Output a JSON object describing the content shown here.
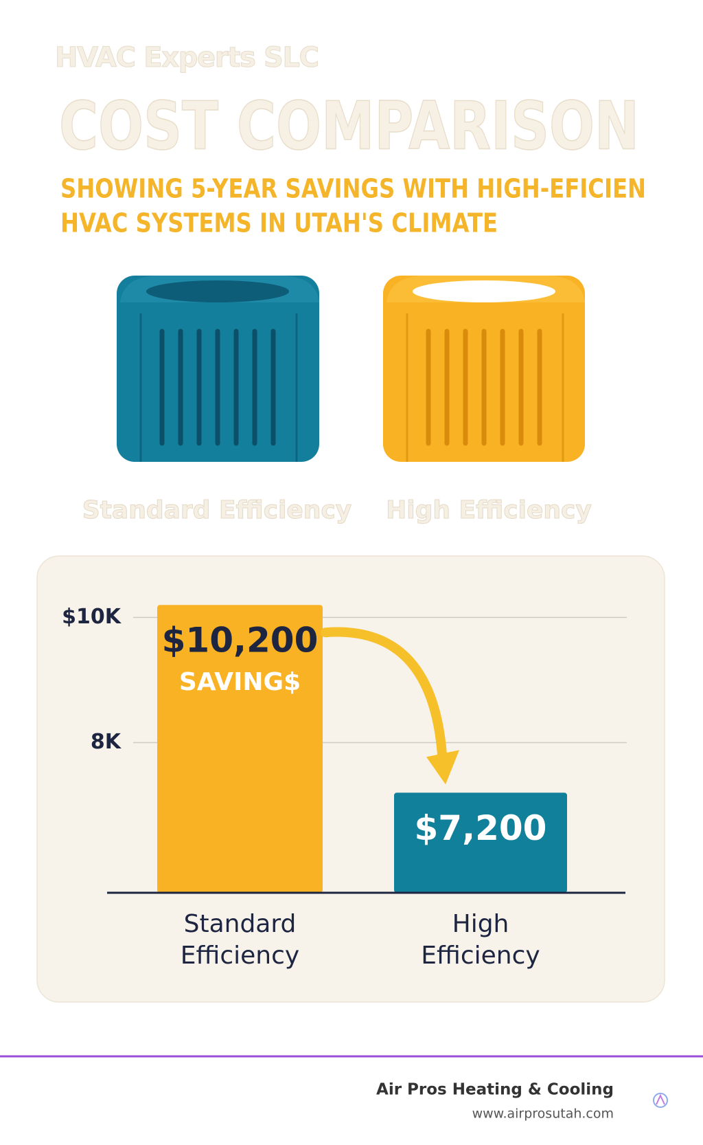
{
  "header": {
    "brand": "HVAC Experts SLC",
    "title": "COST COMPARISON",
    "subtitle": [
      "SHOWING 5-YEAR SAVINGS WITH HIGH-EFICIEN",
      "HVAC SYSTEMS IN UTAH'S CLIMATE"
    ]
  },
  "chart_data": {
    "type": "bar",
    "categories": [
      "Standard Efficiency",
      "High Efficiency"
    ],
    "values": [
      10200,
      7200
    ],
    "value_labels": [
      "$10,200",
      "$7,200"
    ],
    "colors": [
      "#f9b224",
      "#11819b"
    ],
    "annotation": "SAVING$",
    "ylim": [
      5600,
      10400
    ],
    "yticks": [
      {
        "value": 8000,
        "label": "8K"
      },
      {
        "value": 10000,
        "label": "$10K"
      }
    ],
    "grid": true
  },
  "footer": {
    "company": "Air Pros Heating & Cooling",
    "url": "www.airprosutah.com"
  }
}
